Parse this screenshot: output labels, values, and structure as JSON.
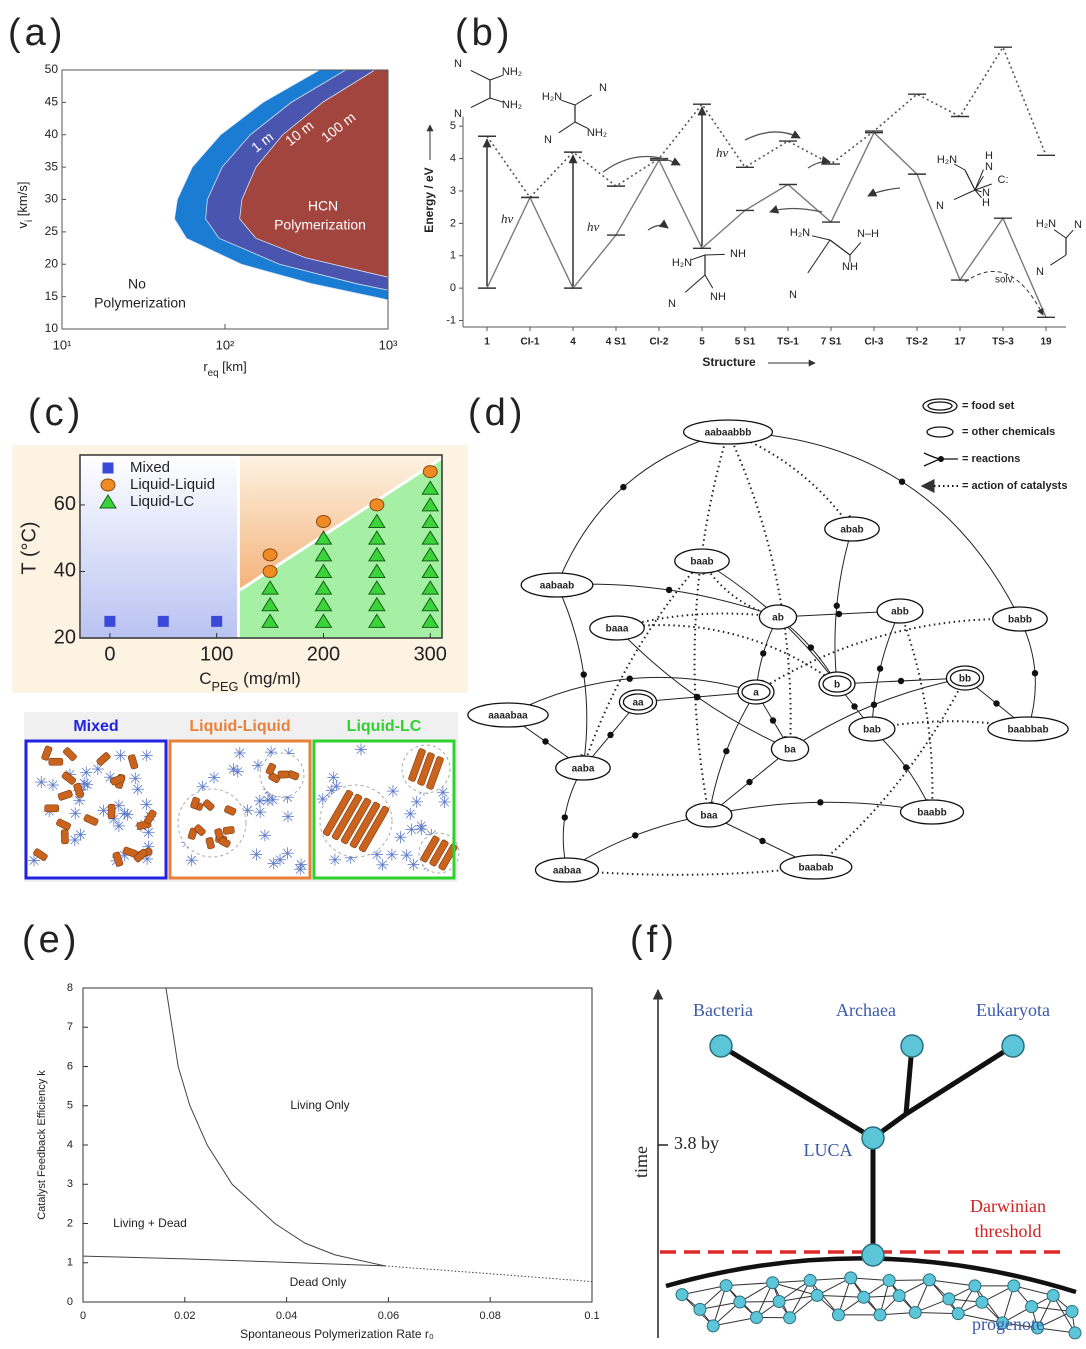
{
  "panel_labels": [
    "(a)",
    "(b)",
    "(c)",
    "(d)",
    "(e)",
    "(f)"
  ],
  "chart_data": [
    {
      "type": "region",
      "xscale": "log",
      "x_label": [
        "r",
        "eq",
        " [km]"
      ],
      "y_label": [
        "v",
        "i",
        " [km/s]"
      ],
      "xlim": [
        10,
        1000
      ],
      "ylim": [
        10,
        50
      ],
      "xticks": [
        {
          "value": 10,
          "label": "10¹"
        },
        {
          "value": 100,
          "label": "10²"
        },
        {
          "value": 1000,
          "label": "10³"
        }
      ],
      "yticks": [
        10,
        15,
        20,
        25,
        30,
        35,
        40,
        45,
        50
      ],
      "series": [
        {
          "name": "1 m",
          "color": "#1a7cd2",
          "x": [
            380,
            171,
            94,
            63,
            51,
            49,
            58,
            126,
            339,
            1000
          ],
          "y": [
            50,
            45,
            40,
            35,
            30,
            27,
            24,
            20,
            17,
            14.5
          ]
        },
        {
          "name": "10 m",
          "color": "#4a55b0",
          "x": [
            550,
            255,
            143,
            96,
            78,
            76,
            92,
            216,
            640,
            1000
          ],
          "y": [
            50,
            45,
            40,
            35,
            30,
            27,
            24,
            20,
            17,
            16
          ]
        },
        {
          "name": "100 m",
          "color": "#a3453f",
          "x": [
            830,
            397,
            226,
            155,
            127,
            123,
            155,
            312,
            1000
          ],
          "y": [
            50,
            45,
            40,
            35,
            30,
            27,
            24,
            21,
            18
          ]
        }
      ],
      "region_labels": [
        [
          "HCN",
          "Polymerization"
        ],
        [
          "No",
          "Polymerization"
        ]
      ]
    },
    {
      "type": "energy-level",
      "y_label": "Energy / eV",
      "x_label": "Structure",
      "categories": [
        "1",
        "CI-1",
        "4",
        "4 S1",
        "CI-2",
        "5",
        "5 S1",
        "TS-1",
        "7 S1",
        "CI-3",
        "TS-2",
        "17",
        "TS-3",
        "19"
      ],
      "ylim": [
        -1.2,
        7.6
      ],
      "yticks": [
        -1,
        0,
        1,
        2,
        3,
        4,
        5
      ],
      "series": [
        {
          "line_style": "solid",
          "color": "#7a7a7a",
          "values": [
            0,
            2.8,
            0,
            1.64,
            3.95,
            1.23,
            2.4,
            3.2,
            2.04,
            4.8,
            3.52,
            0.25,
            2.16,
            -0.9
          ]
        },
        {
          "line_style": "dotted",
          "color": "#555555",
          "values": [
            4.69,
            2.8,
            4.2,
            3.15,
            4.0,
            5.68,
            3.73,
            4.54,
            3.83,
            4.85,
            5.99,
            5.3,
            7.44,
            4.1
          ]
        }
      ],
      "excitation_labels": [
        "hν",
        "hν",
        "hν"
      ],
      "solvent_label": "solv.",
      "molecules": [
        [
          "N",
          "NH₂",
          "N",
          "NH₂"
        ],
        [
          "H₂N",
          "N",
          "N",
          "NH₂"
        ],
        [
          "H₂N",
          "NH",
          "N",
          "NH"
        ],
        [
          "H₂N",
          "N–H",
          "NH",
          "N"
        ],
        [
          "H₂N",
          "H",
          "N",
          "C:",
          "N",
          "H",
          "N"
        ],
        [
          "H₂N",
          "N",
          "N"
        ]
      ]
    },
    {
      "type": "scatter",
      "x_label": [
        "C",
        "PEG",
        " (mg/ml)"
      ],
      "y_label": "T (°C)",
      "xlim": [
        -28,
        311
      ],
      "ylim": [
        20,
        75
      ],
      "xticks": [
        0,
        100,
        200,
        300
      ],
      "yticks": [
        20,
        40,
        60
      ],
      "legend": "upper left",
      "series": [
        {
          "name": "Mixed",
          "marker": "square",
          "color": "#3a49d8",
          "x": [
            0,
            50,
            100
          ],
          "y": [
            25,
            25,
            25
          ]
        },
        {
          "name": "Liquid-Liquid",
          "marker": "circle",
          "color": "#f08a24",
          "x": [
            150,
            150,
            200,
            250,
            300
          ],
          "y": [
            40,
            45,
            55,
            60,
            70
          ]
        },
        {
          "name": "Liquid-LC",
          "marker": "triangle",
          "color": "#3ad43a",
          "x": [
            150,
            150,
            150,
            200,
            200,
            200,
            200,
            200,
            200,
            250,
            250,
            250,
            250,
            250,
            250,
            250,
            300,
            300,
            300,
            300,
            300,
            300,
            300,
            300,
            300
          ],
          "y": [
            25,
            30,
            35,
            25,
            30,
            35,
            40,
            45,
            50,
            25,
            30,
            35,
            40,
            45,
            50,
            55,
            25,
            30,
            35,
            40,
            45,
            50,
            55,
            60,
            65
          ]
        }
      ],
      "illustration_titles": [
        "Mixed",
        "Liquid-Liquid",
        "Liquid-LC"
      ]
    },
    {
      "type": "line",
      "x_label": "Spontaneous Polymerization Rate r₀",
      "y_label": "Catalyst Feedback Efficiency k",
      "xlim": [
        0,
        0.1
      ],
      "ylim": [
        0,
        8
      ],
      "xticks": [
        0,
        0.02,
        0.04,
        0.06,
        0.08,
        0.1
      ],
      "yticks": [
        0,
        1,
        2,
        3,
        4,
        5,
        6,
        7,
        8
      ],
      "series": [
        {
          "line_style": "solid",
          "color": "#444444",
          "x": [
            0.0163,
            0.0187,
            0.021,
            0.0244,
            0.0293,
            0.0377,
            0.0436,
            0.0495,
            0.0593
          ],
          "y": [
            8,
            6,
            5,
            4,
            3,
            2,
            1.5,
            1.2,
            0.92
          ]
        },
        {
          "line_style": "solid",
          "color": "#444444",
          "x": [
            0,
            0.02,
            0.04,
            0.0593
          ],
          "y": [
            1.17,
            1.1,
            1.01,
            0.92
          ]
        },
        {
          "line_style": "dotted",
          "color": "#444444",
          "x": [
            0.0593,
            0.08,
            0.1
          ],
          "y": [
            0.92,
            0.72,
            0.52
          ]
        }
      ],
      "region_labels": [
        "Living Only",
        "Living + Dead",
        "Dead Only"
      ]
    }
  ],
  "network": {
    "legend": [
      "= food set",
      "= other chemicals",
      "= reactions",
      "= action of catalysts"
    ],
    "nodes": [
      {
        "label": "aabaabbb",
        "food_set": false
      },
      {
        "label": "abab",
        "food_set": false
      },
      {
        "label": "baab",
        "food_set": false
      },
      {
        "label": "aabaab",
        "food_set": false
      },
      {
        "label": "baaa",
        "food_set": false
      },
      {
        "label": "ab",
        "food_set": false
      },
      {
        "label": "abb",
        "food_set": false
      },
      {
        "label": "babb",
        "food_set": false
      },
      {
        "label": "aaaabaa",
        "food_set": false
      },
      {
        "label": "aa",
        "food_set": true
      },
      {
        "label": "a",
        "food_set": true
      },
      {
        "label": "b",
        "food_set": true
      },
      {
        "label": "bb",
        "food_set": true
      },
      {
        "label": "ba",
        "food_set": false
      },
      {
        "label": "bab",
        "food_set": false
      },
      {
        "label": "baabbab",
        "food_set": false
      },
      {
        "label": "aaba",
        "food_set": false
      },
      {
        "label": "baa",
        "food_set": false
      },
      {
        "label": "baabb",
        "food_set": false
      },
      {
        "label": "aabaa",
        "food_set": false
      },
      {
        "label": "baabab",
        "food_set": false
      }
    ]
  },
  "tree": {
    "leaves": [
      "Bacteria",
      "Archaea",
      "Eukaryota"
    ],
    "root": "LUCA",
    "time_axis": "time",
    "age": "3.8 by",
    "threshold": [
      "Darwinian",
      "threshold"
    ],
    "base": "progenote"
  }
}
